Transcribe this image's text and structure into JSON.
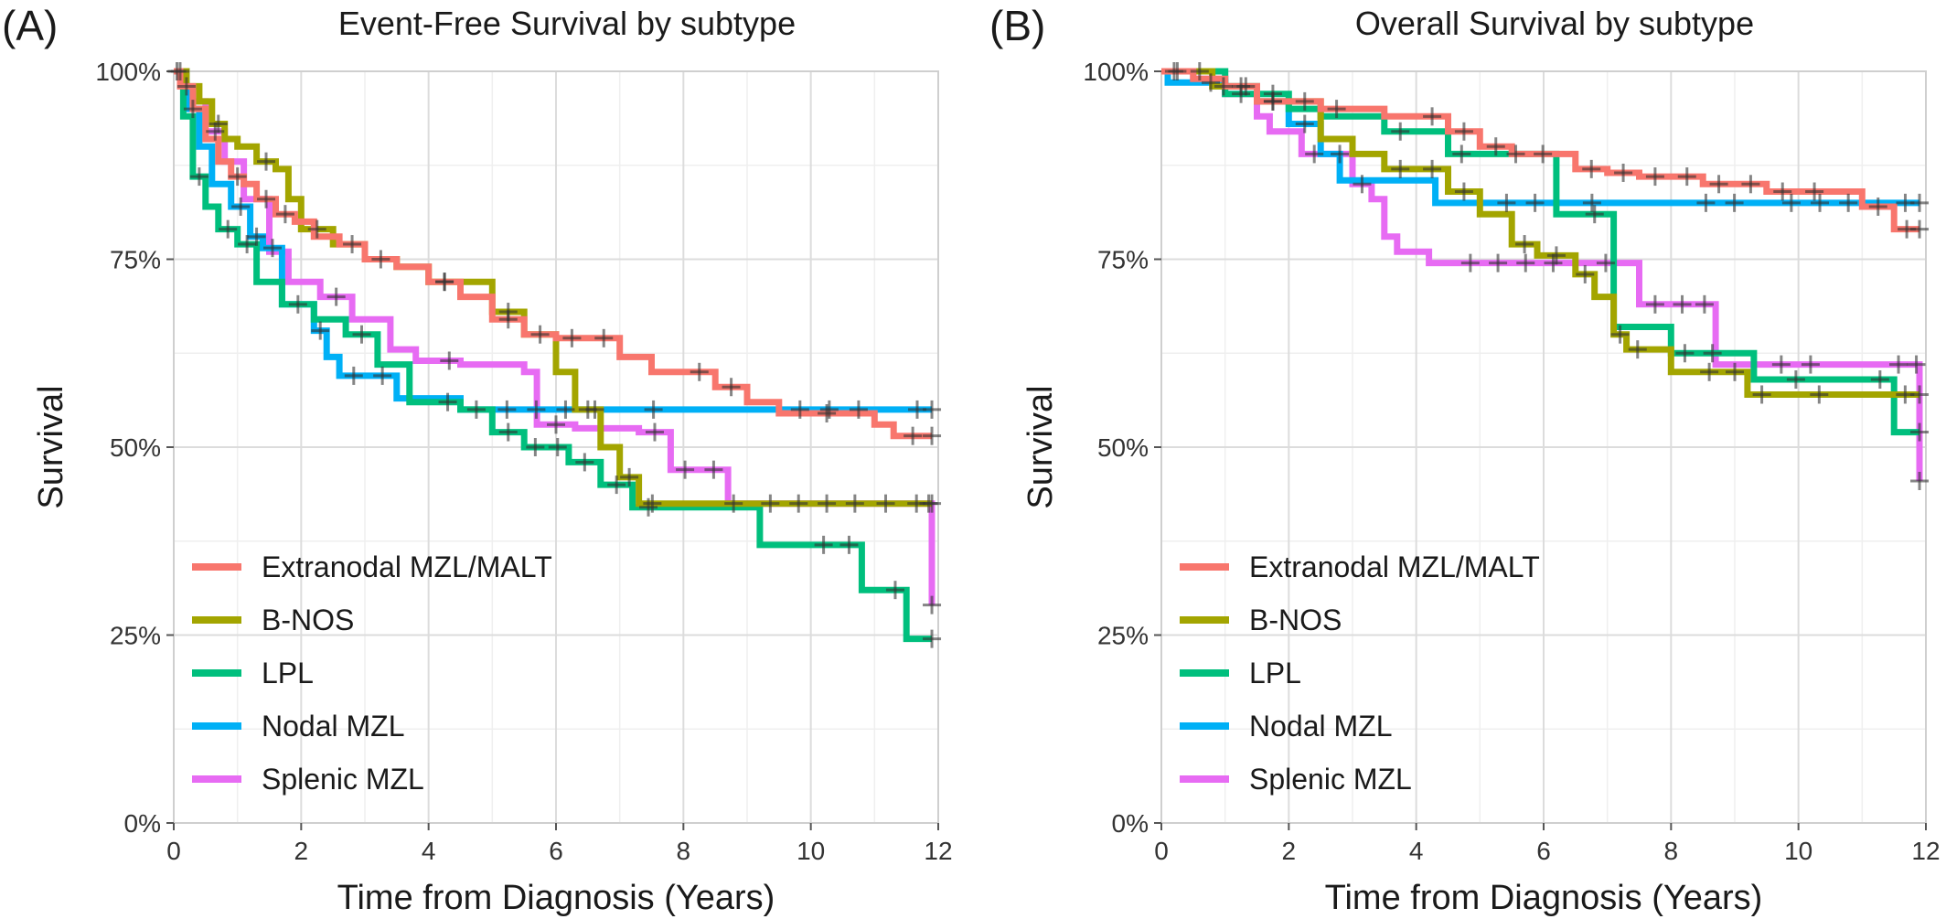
{
  "chart_data": [
    {
      "type": "line",
      "panel_label": "(A)",
      "title": "Event-Free Survival by subtype",
      "xlabel": "Time from Diagnosis (Years)",
      "ylabel": "Survival",
      "xlim": [
        0,
        12
      ],
      "ylim": [
        0,
        1
      ],
      "x_ticks": [
        0,
        2,
        4,
        6,
        8,
        10,
        12
      ],
      "x_tick_labels": [
        "0",
        "2",
        "4",
        "6",
        "8",
        "10",
        "12"
      ],
      "y_ticks": [
        0,
        0.25,
        0.5,
        0.75,
        1
      ],
      "y_tick_labels": [
        "0%",
        "25%",
        "50%",
        "75%",
        "100%"
      ],
      "grid": true,
      "legend_position": "bottom-left",
      "series": [
        {
          "name": "Extranodal MZL/MALT",
          "color": "#F8766D",
          "x": [
            0,
            0.1,
            0.3,
            0.5,
            0.7,
            0.9,
            1.1,
            1.3,
            1.6,
            1.9,
            2.2,
            2.6,
            3.0,
            3.5,
            4.0,
            4.5,
            5.0,
            5.5,
            6.0,
            7.0,
            7.5,
            8.5,
            9.0,
            9.5,
            11.0,
            11.3,
            11.9
          ],
          "y": [
            1.0,
            0.98,
            0.95,
            0.91,
            0.88,
            0.86,
            0.85,
            0.83,
            0.81,
            0.8,
            0.78,
            0.77,
            0.75,
            0.74,
            0.72,
            0.7,
            0.67,
            0.65,
            0.645,
            0.62,
            0.6,
            0.58,
            0.56,
            0.545,
            0.53,
            0.515,
            0.515
          ]
        },
        {
          "name": "B-NOS",
          "color": "#A3A500",
          "x": [
            0,
            0.2,
            0.4,
            0.6,
            0.8,
            1.0,
            1.3,
            1.6,
            1.8,
            2.0,
            2.5,
            3.0,
            3.5,
            4.0,
            5.0,
            5.5,
            6.0,
            6.3,
            6.7,
            7.0,
            7.3,
            9.0,
            11.9
          ],
          "y": [
            1.0,
            0.98,
            0.96,
            0.93,
            0.91,
            0.9,
            0.88,
            0.87,
            0.83,
            0.79,
            0.77,
            0.75,
            0.74,
            0.72,
            0.68,
            0.65,
            0.6,
            0.55,
            0.5,
            0.46,
            0.425,
            0.425,
            0.425
          ]
        },
        {
          "name": "LPL",
          "color": "#00BF7D",
          "x": [
            0,
            0.15,
            0.3,
            0.5,
            0.7,
            1.0,
            1.3,
            1.7,
            2.2,
            2.7,
            3.2,
            3.7,
            4.5,
            5.0,
            5.5,
            6.2,
            6.7,
            7.2,
            9.2,
            10.8,
            11.5,
            11.9
          ],
          "y": [
            1.0,
            0.94,
            0.86,
            0.82,
            0.79,
            0.77,
            0.72,
            0.69,
            0.67,
            0.65,
            0.61,
            0.56,
            0.55,
            0.52,
            0.5,
            0.48,
            0.45,
            0.42,
            0.37,
            0.31,
            0.245,
            0.245
          ]
        },
        {
          "name": "Nodal MZL",
          "color": "#00B0F6",
          "x": [
            0,
            0.2,
            0.4,
            0.6,
            0.9,
            1.2,
            1.4,
            1.7,
            2.2,
            2.4,
            2.6,
            3.5,
            4.5,
            5.0,
            11.9
          ],
          "y": [
            1.0,
            0.95,
            0.9,
            0.85,
            0.82,
            0.78,
            0.765,
            0.69,
            0.655,
            0.62,
            0.595,
            0.565,
            0.55,
            0.55,
            0.55
          ]
        },
        {
          "name": "Splenic MZL",
          "color": "#E76BF3",
          "x": [
            0,
            0.2,
            0.5,
            0.8,
            1.1,
            1.5,
            1.8,
            2.3,
            2.8,
            3.4,
            3.8,
            4.5,
            5.5,
            5.7,
            6.3,
            7.3,
            7.8,
            8.7,
            11.8,
            11.9
          ],
          "y": [
            1.0,
            0.96,
            0.92,
            0.88,
            0.83,
            0.76,
            0.72,
            0.7,
            0.67,
            0.63,
            0.615,
            0.61,
            0.6,
            0.53,
            0.525,
            0.52,
            0.47,
            0.425,
            0.425,
            0.29
          ]
        }
      ]
    },
    {
      "type": "line",
      "panel_label": "(B)",
      "title": "Overall Survival by subtype",
      "xlabel": "Time from Diagnosis (Years)",
      "ylabel": "Survival",
      "xlim": [
        0,
        12
      ],
      "ylim": [
        0,
        1
      ],
      "x_ticks": [
        0,
        2,
        4,
        6,
        8,
        10,
        12
      ],
      "x_tick_labels": [
        "0",
        "2",
        "4",
        "6",
        "8",
        "10",
        "12"
      ],
      "y_ticks": [
        0,
        0.25,
        0.5,
        0.75,
        1
      ],
      "y_tick_labels": [
        "0%",
        "25%",
        "50%",
        "75%",
        "100%"
      ],
      "grid": true,
      "legend_position": "bottom-left",
      "series": [
        {
          "name": "Extranodal MZL/MALT",
          "color": "#F8766D",
          "x": [
            0,
            0.5,
            1.0,
            1.5,
            2.5,
            3.5,
            4.5,
            5.0,
            5.5,
            6.5,
            7.0,
            7.5,
            8.5,
            9.5,
            11.0,
            11.5,
            11.9
          ],
          "y": [
            1.0,
            0.99,
            0.98,
            0.96,
            0.95,
            0.94,
            0.92,
            0.9,
            0.89,
            0.87,
            0.865,
            0.86,
            0.85,
            0.84,
            0.82,
            0.79,
            0.79
          ]
        },
        {
          "name": "B-NOS",
          "color": "#A3A500",
          "x": [
            0,
            0.8,
            1.5,
            2.5,
            3.0,
            3.5,
            4.5,
            5.0,
            5.5,
            5.9,
            6.5,
            6.8,
            7.1,
            7.3,
            8.0,
            9.2,
            11.9
          ],
          "y": [
            1.0,
            0.98,
            0.96,
            0.91,
            0.89,
            0.87,
            0.84,
            0.81,
            0.77,
            0.755,
            0.73,
            0.7,
            0.65,
            0.63,
            0.6,
            0.57,
            0.57
          ]
        },
        {
          "name": "LPL",
          "color": "#00BF7D",
          "x": [
            0,
            1.0,
            2.0,
            2.5,
            3.5,
            4.5,
            6.2,
            7.0,
            7.1,
            8.0,
            9.3,
            11.5,
            11.9
          ],
          "y": [
            1.0,
            0.97,
            0.95,
            0.94,
            0.92,
            0.89,
            0.81,
            0.81,
            0.66,
            0.625,
            0.59,
            0.52,
            0.52
          ]
        },
        {
          "name": "Nodal MZL",
          "color": "#00B0F6",
          "x": [
            0,
            0.1,
            1.0,
            1.5,
            2.0,
            2.5,
            2.8,
            4.3,
            11.9
          ],
          "y": [
            1.0,
            0.985,
            0.98,
            0.96,
            0.93,
            0.89,
            0.855,
            0.825,
            0.825
          ]
        },
        {
          "name": "Splenic MZL",
          "color": "#E76BF3",
          "x": [
            0,
            0.5,
            1.0,
            1.5,
            1.7,
            2.2,
            3.0,
            3.3,
            3.5,
            3.7,
            4.2,
            6.8,
            7.5,
            8.0,
            8.7,
            9.5,
            11.8,
            11.9
          ],
          "y": [
            1.0,
            0.99,
            0.97,
            0.94,
            0.92,
            0.89,
            0.85,
            0.83,
            0.78,
            0.76,
            0.745,
            0.745,
            0.69,
            0.69,
            0.61,
            0.61,
            0.61,
            0.455
          ]
        }
      ]
    }
  ]
}
